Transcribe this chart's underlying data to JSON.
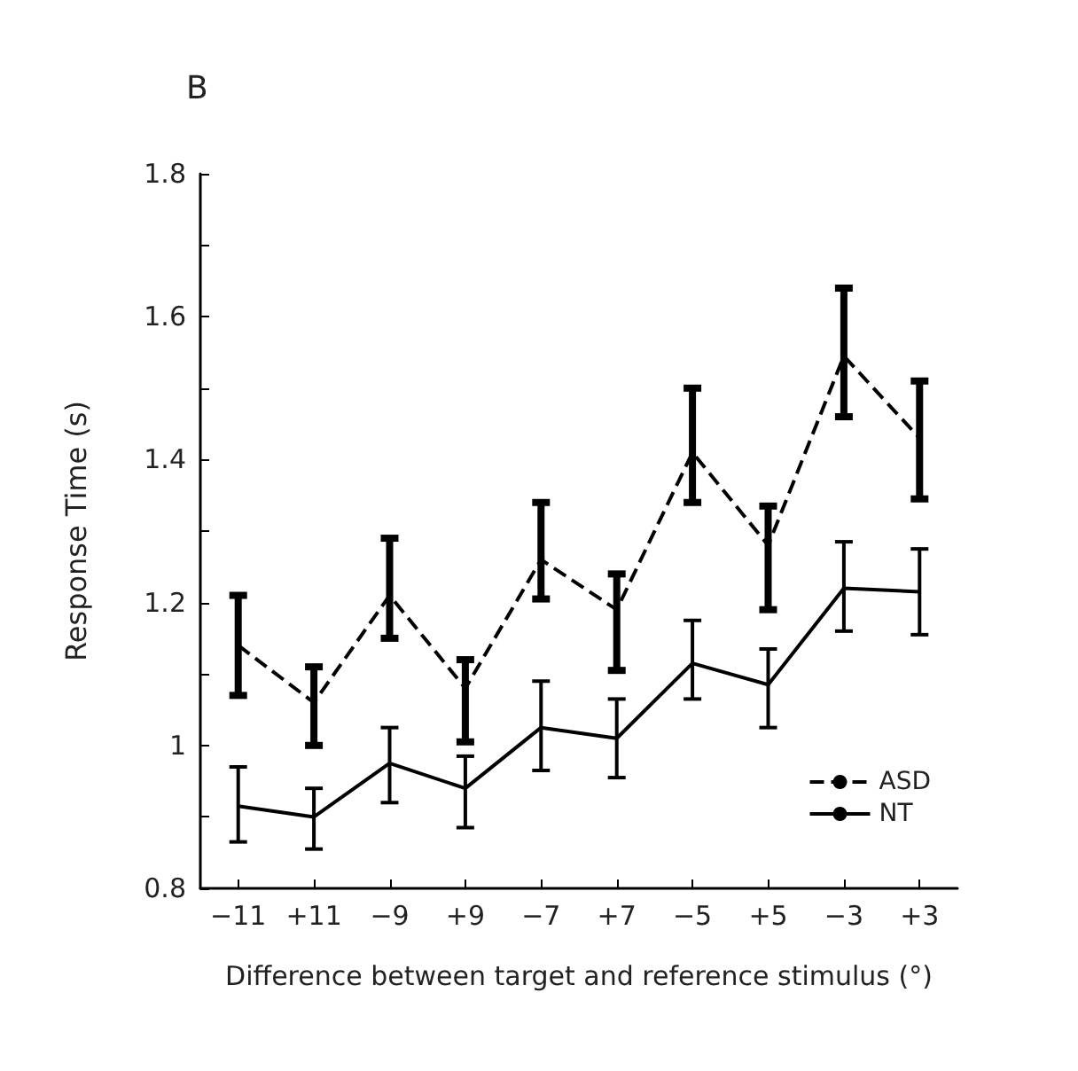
{
  "chart_data": {
    "type": "line",
    "title": "B",
    "xlabel": "Difference between target and reference stimulus (°)",
    "ylabel": "Response Time (s)",
    "categories": [
      "−11",
      "+11",
      "−9",
      "+9",
      "−7",
      "+7",
      "−5",
      "+5",
      "−3",
      "+3"
    ],
    "series": [
      {
        "name": "ASD",
        "color": "#000000",
        "line_style": "dashed",
        "values": [
          1.14,
          1.06,
          1.21,
          1.08,
          1.26,
          1.19,
          1.41,
          1.28,
          1.545,
          1.43
        ],
        "errors": [
          [
            1.07,
            1.21
          ],
          [
            1.0,
            1.11
          ],
          [
            1.15,
            1.29
          ],
          [
            1.005,
            1.12
          ],
          [
            1.205,
            1.34
          ],
          [
            1.105,
            1.24
          ],
          [
            1.34,
            1.5
          ],
          [
            1.19,
            1.335
          ],
          [
            1.46,
            1.64
          ],
          [
            1.345,
            1.51
          ]
        ]
      },
      {
        "name": "NT",
        "color": "#000000",
        "line_style": "solid",
        "values": [
          0.915,
          0.9,
          0.975,
          0.94,
          1.025,
          1.01,
          1.115,
          1.085,
          1.22,
          1.215
        ],
        "errors": [
          [
            0.865,
            0.97
          ],
          [
            0.855,
            0.94
          ],
          [
            0.92,
            1.025
          ],
          [
            0.885,
            0.985
          ],
          [
            0.965,
            1.09
          ],
          [
            0.955,
            1.065
          ],
          [
            1.065,
            1.175
          ],
          [
            1.025,
            1.135
          ],
          [
            1.16,
            1.285
          ],
          [
            1.155,
            1.275
          ]
        ]
      }
    ],
    "ylim": [
      0.8,
      1.8
    ],
    "yticks": [
      0.8,
      {
        "value": 0.9,
        "label": null
      },
      1,
      {
        "value": 1.1,
        "label": null
      },
      1.2,
      {
        "value": 1.3,
        "label": null
      },
      1.4,
      {
        "value": 1.5,
        "label": null
      },
      1.6,
      {
        "value": 1.7,
        "label": null
      },
      1.8
    ],
    "legend": "bottom right",
    "marker": "none",
    "grid": false
  }
}
